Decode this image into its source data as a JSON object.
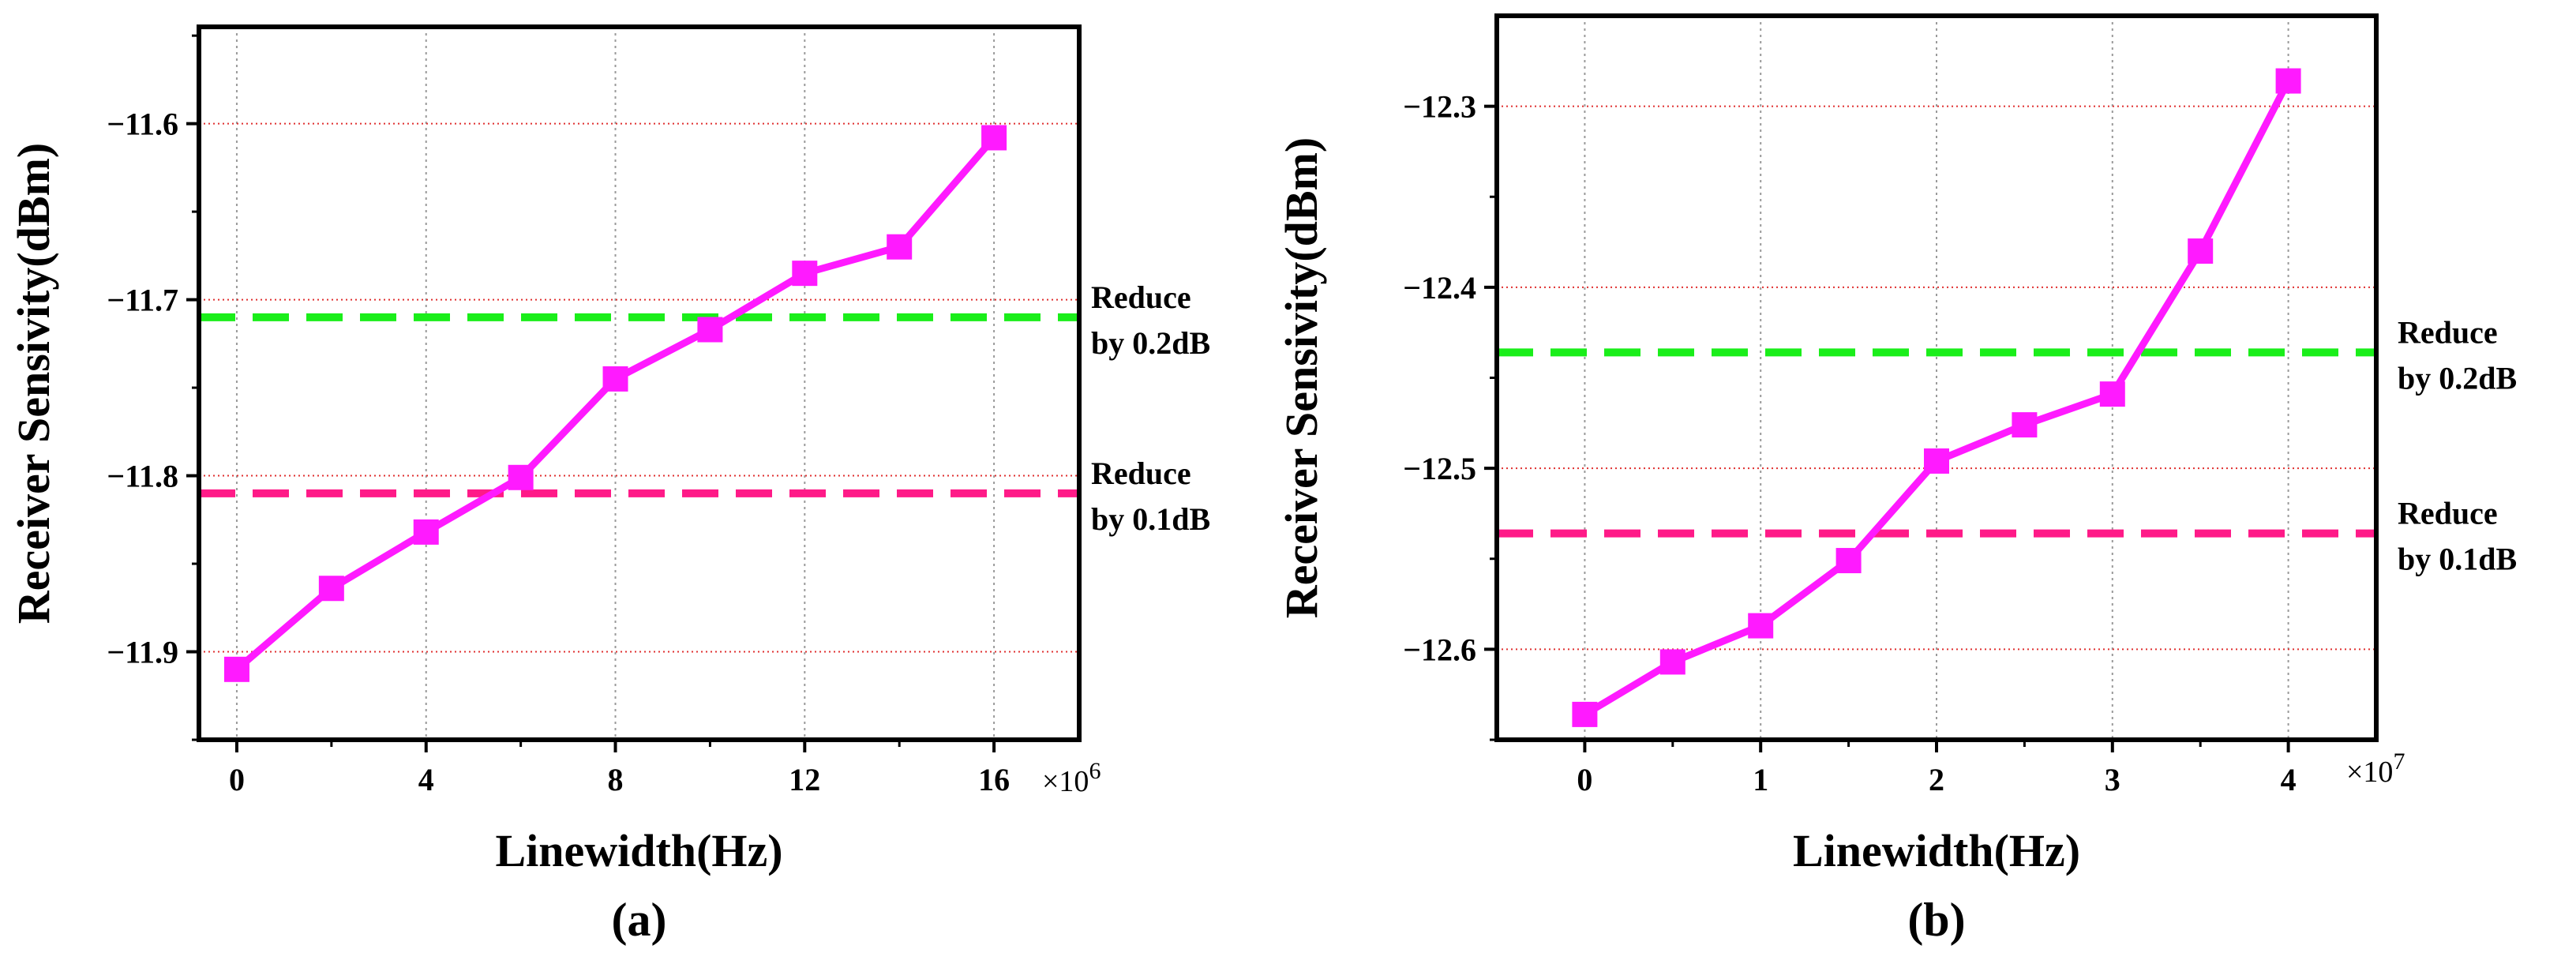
{
  "chart_data": [
    {
      "type": "line",
      "panel_label": "(a)",
      "xlabel": "Linewidth(Hz)",
      "ylabel": "Receiver Sensivity(dBm)",
      "x_multiplier": "×10",
      "x_multiplier_exp": "6",
      "xlim": [
        -0.8,
        17.8
      ],
      "ylim": [
        -11.95,
        -11.545
      ],
      "xticks": [
        0,
        4,
        8,
        12,
        16
      ],
      "xtick_labels": [
        "0",
        "4",
        "8",
        "12",
        "16"
      ],
      "yticks": [
        -11.9,
        -11.8,
        -11.7,
        -11.6
      ],
      "ytick_labels": [
        "−11.9",
        "−11.8",
        "−11.7",
        "−11.6"
      ],
      "grid": true,
      "series": [
        {
          "name": "Receiver sensitivity",
          "color": "#ff1aff",
          "marker": "square",
          "x": [
            0,
            2,
            4,
            6,
            8,
            10,
            12,
            14,
            16
          ],
          "y": [
            -11.91,
            -11.864,
            -11.832,
            -11.801,
            -11.745,
            -11.717,
            -11.685,
            -11.67,
            -11.608
          ]
        }
      ],
      "reference_lines": [
        {
          "y": -11.71,
          "color": "#1aee1a",
          "style": "dashed",
          "label_line1": "Reduce",
          "label_line2": "by 0.2dB"
        },
        {
          "y": -11.81,
          "color": "#ff1a88",
          "style": "dashed",
          "label_line1": "Reduce",
          "label_line2": "by 0.1dB"
        }
      ]
    },
    {
      "type": "line",
      "panel_label": "(b)",
      "xlabel": "Linewidth(Hz)",
      "ylabel": "Receiver Sensivity(dBm)",
      "x_multiplier": "×10",
      "x_multiplier_exp": "7",
      "xlim": [
        -0.5,
        4.5
      ],
      "ylim": [
        -12.65,
        -12.25
      ],
      "xticks": [
        0,
        1,
        2,
        3,
        4
      ],
      "xtick_labels": [
        "0",
        "1",
        "2",
        "3",
        "4"
      ],
      "yticks": [
        -12.6,
        -12.5,
        -12.4,
        -12.3
      ],
      "ytick_labels": [
        "−12.6",
        "−12.5",
        "−12.4",
        "−12.3"
      ],
      "grid": true,
      "series": [
        {
          "name": "Receiver sensitivity",
          "color": "#ff1aff",
          "marker": "square",
          "x": [
            0,
            0.5,
            1,
            1.5,
            2,
            2.5,
            3,
            3.5,
            4
          ],
          "y": [
            -12.636,
            -12.607,
            -12.587,
            -12.551,
            -12.496,
            -12.476,
            -12.459,
            -12.38,
            -12.286
          ]
        }
      ],
      "reference_lines": [
        {
          "y": -12.436,
          "color": "#1aee1a",
          "style": "dashed",
          "label_line1": "Reduce",
          "label_line2": "by 0.2dB"
        },
        {
          "y": -12.536,
          "color": "#ff1a88",
          "style": "dashed",
          "label_line1": "Reduce",
          "label_line2": "by 0.1dB"
        }
      ]
    }
  ]
}
